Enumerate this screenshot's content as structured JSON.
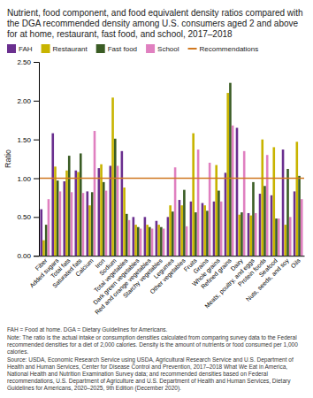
{
  "chart_data": {
    "type": "bar",
    "title": "Nutrient, food component, and food equivalent density ratios compared with the DGA recommended density among U.S. consumers aged 2 and above for at home, restaurant, fast food, and school, 2017–2018",
    "ylabel": "Ratio",
    "categories": [
      "Fiber",
      "Added sugars",
      "Total fats",
      "Saturated fats",
      "Calcium",
      "Iron",
      "Sodium",
      "Total vegetables",
      "Dark green vegetables",
      "Red and orange vegetables",
      "Starchy vegetables",
      "Legumes",
      "Other vegetables",
      "Fruits",
      "Grains",
      "Whole grains",
      "Refined grains",
      "Dairy",
      "Meats, poultry, and eggs",
      "Protein foods",
      "Seafood",
      "Nuts, seeds, and soy",
      "Oils"
    ],
    "series": [
      {
        "name": "FAH",
        "color": "#6a2f8f",
        "values": [
          0.6,
          1.58,
          0.96,
          1.1,
          0.83,
          1.13,
          1.16,
          1.35,
          0.5,
          0.5,
          0.45,
          0.5,
          0.72,
          0.7,
          0.68,
          0.7,
          1.07,
          1.65,
          0.55,
          0.8,
          0.78,
          1.37,
          0.83
        ]
      },
      {
        "name": "Restaurant",
        "color": "#c8b400",
        "values": [
          0.2,
          1.15,
          1.1,
          1.08,
          0.65,
          1.18,
          2.04,
          0.88,
          0.4,
          0.4,
          0.4,
          0.65,
          0.65,
          1.58,
          0.65,
          1.17,
          2.1,
          0.53,
          0.52,
          1.5,
          1.4,
          0.4,
          1.47
        ]
      },
      {
        "name": "Fast food",
        "color": "#3a5c24",
        "values": [
          0.4,
          0.97,
          1.29,
          1.32,
          0.82,
          0.95,
          1.51,
          0.54,
          0.37,
          0.37,
          0.37,
          0.57,
          0.85,
          0.56,
          0.58,
          0.84,
          2.23,
          0.56,
          0.95,
          0.9,
          0.48,
          1.12,
          1.03
        ]
      },
      {
        "name": "School",
        "color": "#e080c0",
        "values": [
          0.73,
          0.83,
          0.82,
          0.81,
          1.61,
          0.84,
          1.16,
          0.46,
          0.35,
          0.35,
          0.35,
          1.14,
          0.38,
          1.37,
          1.2,
          0.7,
          1.68,
          1.35,
          0.55,
          1.3,
          0.48,
          0.5,
          0.73
        ]
      }
    ],
    "reference_lines": [
      {
        "name": "Recommendations",
        "value": 1.0,
        "color": "#d07820"
      }
    ],
    "ylim": [
      0.0,
      2.5
    ],
    "yticks": [
      {
        "value": 0.0,
        "label": "0.00"
      },
      {
        "value": 0.5,
        "label": "0.50"
      },
      {
        "value": 1.0,
        "label": "1.00"
      },
      {
        "value": 1.5,
        "label": "1.50"
      },
      {
        "value": 2.0,
        "label": "2.00"
      },
      {
        "value": 2.5,
        "label": "2.50"
      }
    ],
    "grid": false,
    "legend": "top",
    "annotations": [
      "FAH = Food at home. DGA = Dietary Guidelines for Americans.",
      "Note: The ratio is the actual intake or consumption densities calculated from comparing survey data to the Federal recommended densities for a diet of 2,000 calories. Density is the amount of nutrients or food consumed per 1,000 calories.",
      "Source: USDA, Economic Research Service using USDA, Agricultural Research Service and U.S. Department of Health and Human Services, Center for Disease Control and Prevention, 2017–2018 What We Eat in America, National Health and Nutrition Examination Survey data; and recommended densities based on Federal recommendations, U.S. Department of Agriculture and U.S. Department of Health and Human Services, Dietary Guidelines for Americans, 2020–2025, 9th Edition (December 2020)."
    ]
  }
}
